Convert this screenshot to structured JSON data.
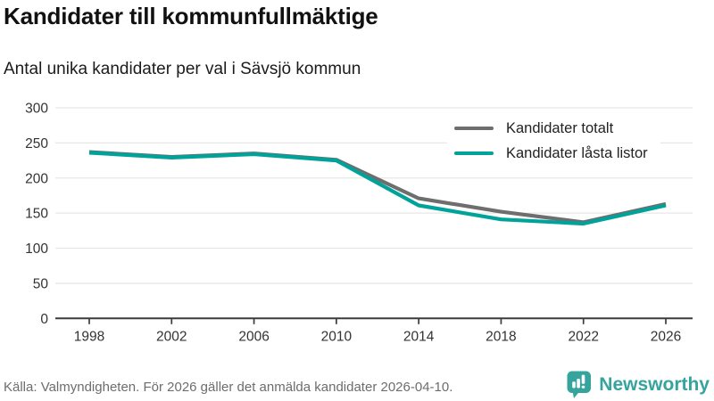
{
  "header": {
    "title": "Kandidater till kommunfullmäktige",
    "subtitle": "Antal unika kandidater per val i Sävsjö kommun"
  },
  "chart_data": {
    "type": "line",
    "title": "Kandidater till kommunfullmäktige",
    "subtitle": "Antal unika kandidater per val i Sävsjö kommun",
    "categories": [
      1998,
      2002,
      2006,
      2010,
      2014,
      2018,
      2022,
      2026
    ],
    "series": [
      {
        "name": "Kandidater totalt",
        "color": "#6e6e6e",
        "values": [
          237,
          230,
          235,
          226,
          171,
          152,
          137,
          163
        ]
      },
      {
        "name": "Kandidater låsta listor",
        "color": "#00a39a",
        "values": [
          236,
          229,
          234,
          225,
          161,
          141,
          135,
          161
        ]
      }
    ],
    "xlabel": "",
    "ylabel": "",
    "ylim": [
      0,
      300
    ],
    "yticks": [
      0,
      50,
      100,
      150,
      200,
      250,
      300
    ],
    "grid": true,
    "legend_position": "top-right",
    "colors": {
      "gridline": "#e7e7e7",
      "axis": "#3c3c3c",
      "tick_label": "#333333"
    }
  },
  "footer": {
    "source": "Källa: Valmyndigheten. För 2026 gäller det anmälda kandidater 2026-04-10.",
    "brand": "Newsworthy",
    "brand_color": "#35a49c"
  }
}
